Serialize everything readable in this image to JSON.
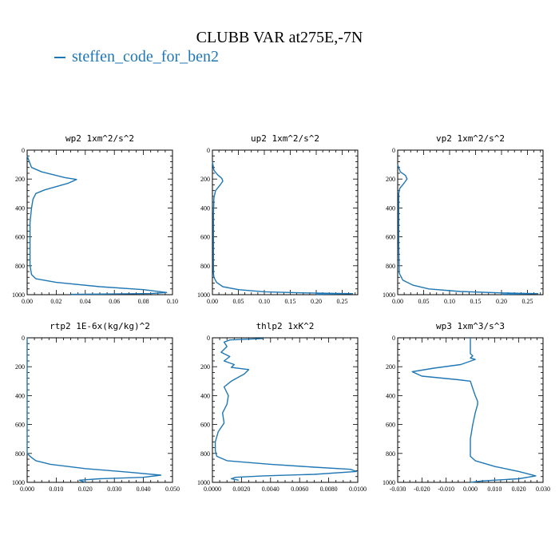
{
  "title": "CLUBB VAR at275E,-7N",
  "legend": {
    "label": "steffen_code_for_ben2",
    "color": "#1f77b4"
  },
  "chart_data": [
    {
      "type": "line",
      "title": "wp2   1xm^2/s^2",
      "xlim": [
        0,
        0.1
      ],
      "ylim": [
        1000,
        0
      ],
      "xticks": [
        "0.00",
        "0.02",
        "0.04",
        "0.06",
        "0.08",
        "0.10"
      ],
      "xtick_values": [
        0,
        0.02,
        0.04,
        0.06,
        0.08,
        0.1
      ],
      "yticks": [
        "0",
        "200",
        "400",
        "600",
        "800",
        "1000"
      ],
      "series": [
        {
          "x": [
            0.0,
            0.003,
            0.01,
            0.02,
            0.026,
            0.034,
            0.028,
            0.012,
            0.006,
            0.004,
            0.003,
            0.002,
            0.002,
            0.002,
            0.002,
            0.003,
            0.006,
            0.02,
            0.05,
            0.08,
            0.096,
            0.085,
            0.06,
            0.03
          ],
          "y": [
            40,
            120,
            150,
            175,
            190,
            203,
            230,
            275,
            300,
            340,
            400,
            500,
            600,
            700,
            800,
            860,
            890,
            915,
            945,
            965,
            985,
            992,
            995,
            998
          ]
        }
      ]
    },
    {
      "type": "line",
      "title": "up2   1xm^2/s^2",
      "xlim": [
        0,
        0.28
      ],
      "ylim": [
        1000,
        0
      ],
      "xticks": [
        "0.00",
        "0.05",
        "0.10",
        "0.15",
        "0.20",
        "0.25"
      ],
      "xtick_values": [
        0,
        0.05,
        0.1,
        0.15,
        0.2,
        0.25
      ],
      "yticks": [
        "0",
        "200",
        "400",
        "600",
        "800",
        "1000"
      ],
      "series": [
        {
          "x": [
            0.0,
            0.003,
            0.01,
            0.018,
            0.02,
            0.015,
            0.006,
            0.003,
            0.002,
            0.002,
            0.002,
            0.003,
            0.008,
            0.02,
            0.05,
            0.1,
            0.18,
            0.27,
            0.2
          ],
          "y": [
            80,
            140,
            170,
            195,
            215,
            240,
            280,
            330,
            450,
            650,
            850,
            880,
            915,
            945,
            965,
            980,
            988,
            993,
            997
          ]
        }
      ]
    },
    {
      "type": "line",
      "title": "vp2   1xm^2/s^2",
      "xlim": [
        0,
        0.28
      ],
      "ylim": [
        1000,
        0
      ],
      "xticks": [
        "0.00",
        "0.05",
        "0.10",
        "0.15",
        "0.20",
        "0.25"
      ],
      "xtick_values": [
        0,
        0.05,
        0.1,
        0.15,
        0.2,
        0.25
      ],
      "yticks": [
        "0",
        "200",
        "400",
        "600",
        "800",
        "1000"
      ],
      "series": [
        {
          "x": [
            0.0,
            0.005,
            0.015,
            0.018,
            0.012,
            0.004,
            0.002,
            0.002,
            0.002,
            0.003,
            0.01,
            0.03,
            0.06,
            0.12,
            0.2,
            0.27,
            0.2
          ],
          "y": [
            100,
            150,
            175,
            200,
            230,
            265,
            300,
            450,
            650,
            850,
            900,
            935,
            960,
            978,
            988,
            993,
            997
          ]
        }
      ]
    },
    {
      "type": "line",
      "title": "rtp2   1E-6x(kg/kg)^2",
      "xlim": [
        0,
        0.05
      ],
      "ylim": [
        1000,
        0
      ],
      "xticks": [
        "0.000",
        "0.010",
        "0.020",
        "0.030",
        "0.040",
        "0.050"
      ],
      "xtick_values": [
        0,
        0.01,
        0.02,
        0.03,
        0.04,
        0.05
      ],
      "yticks": [
        "0",
        "200",
        "400",
        "600",
        "800",
        "1000"
      ],
      "series": [
        {
          "x": [
            0.0,
            0.0,
            0.0,
            0.0,
            0.001,
            0.003,
            0.008,
            0.02,
            0.035,
            0.046,
            0.04,
            0.025,
            0.018,
            0.02
          ],
          "y": [
            0,
            400,
            700,
            800,
            820,
            850,
            875,
            905,
            930,
            950,
            965,
            975,
            985,
            1000
          ]
        }
      ]
    },
    {
      "type": "line",
      "title": "thlp2   1xK^2",
      "xlim": [
        0,
        0.01
      ],
      "ylim": [
        1000,
        0
      ],
      "xticks": [
        "0.0000",
        "0.0020",
        "0.0040",
        "0.0060",
        "0.0080",
        "0.0100"
      ],
      "xtick_values": [
        0,
        0.002,
        0.004,
        0.006,
        0.008,
        0.01
      ],
      "yticks": [
        "0",
        "200",
        "400",
        "600",
        "800",
        "1000"
      ],
      "series": [
        {
          "x": [
            0.0035,
            0.0012,
            0.0008,
            0.001,
            0.0006,
            0.0012,
            0.0008,
            0.0015,
            0.0013,
            0.0025,
            0.0022,
            0.0013,
            0.0008,
            0.0011,
            0.001,
            0.0007,
            0.0008,
            0.0004,
            0.0002,
            0.0002,
            0.0003,
            0.001,
            0.004,
            0.007,
            0.0095,
            0.0099,
            0.007,
            0.0035,
            0.0016,
            0.0013,
            0.0018
          ],
          "y": [
            5,
            15,
            30,
            60,
            100,
            130,
            160,
            185,
            205,
            220,
            250,
            300,
            340,
            400,
            460,
            520,
            590,
            650,
            720,
            780,
            820,
            850,
            875,
            895,
            910,
            925,
            945,
            955,
            965,
            975,
            985
          ]
        }
      ]
    },
    {
      "type": "line",
      "title": "wp3   1xm^3/s^3",
      "xlim": [
        -0.03,
        0.03
      ],
      "ylim": [
        1000,
        0
      ],
      "xticks": [
        "-0.030",
        "-0.020",
        "-0.010",
        "0.000",
        "0.010",
        "0.020",
        "0.030"
      ],
      "xtick_values": [
        -0.03,
        -0.02,
        -0.01,
        0,
        0.01,
        0.02,
        0.03
      ],
      "yticks": [
        "0",
        "200",
        "400",
        "600",
        "800",
        "1000"
      ],
      "series": [
        {
          "x": [
            0.0,
            0.0,
            0.0,
            0.001,
            0.0,
            0.002,
            -0.004,
            -0.015,
            -0.024,
            -0.02,
            -0.005,
            0.0,
            0.001,
            0.002,
            0.003,
            0.003,
            0.002,
            0.001,
            0.0,
            0.0,
            0.0,
            0.002,
            0.01,
            0.02,
            0.027,
            0.02,
            0.005,
            0.0
          ],
          "y": [
            0,
            60,
            110,
            125,
            140,
            150,
            185,
            210,
            235,
            265,
            290,
            300,
            350,
            400,
            440,
            460,
            520,
            600,
            700,
            780,
            820,
            850,
            890,
            925,
            955,
            975,
            990,
            1000
          ]
        }
      ]
    }
  ]
}
